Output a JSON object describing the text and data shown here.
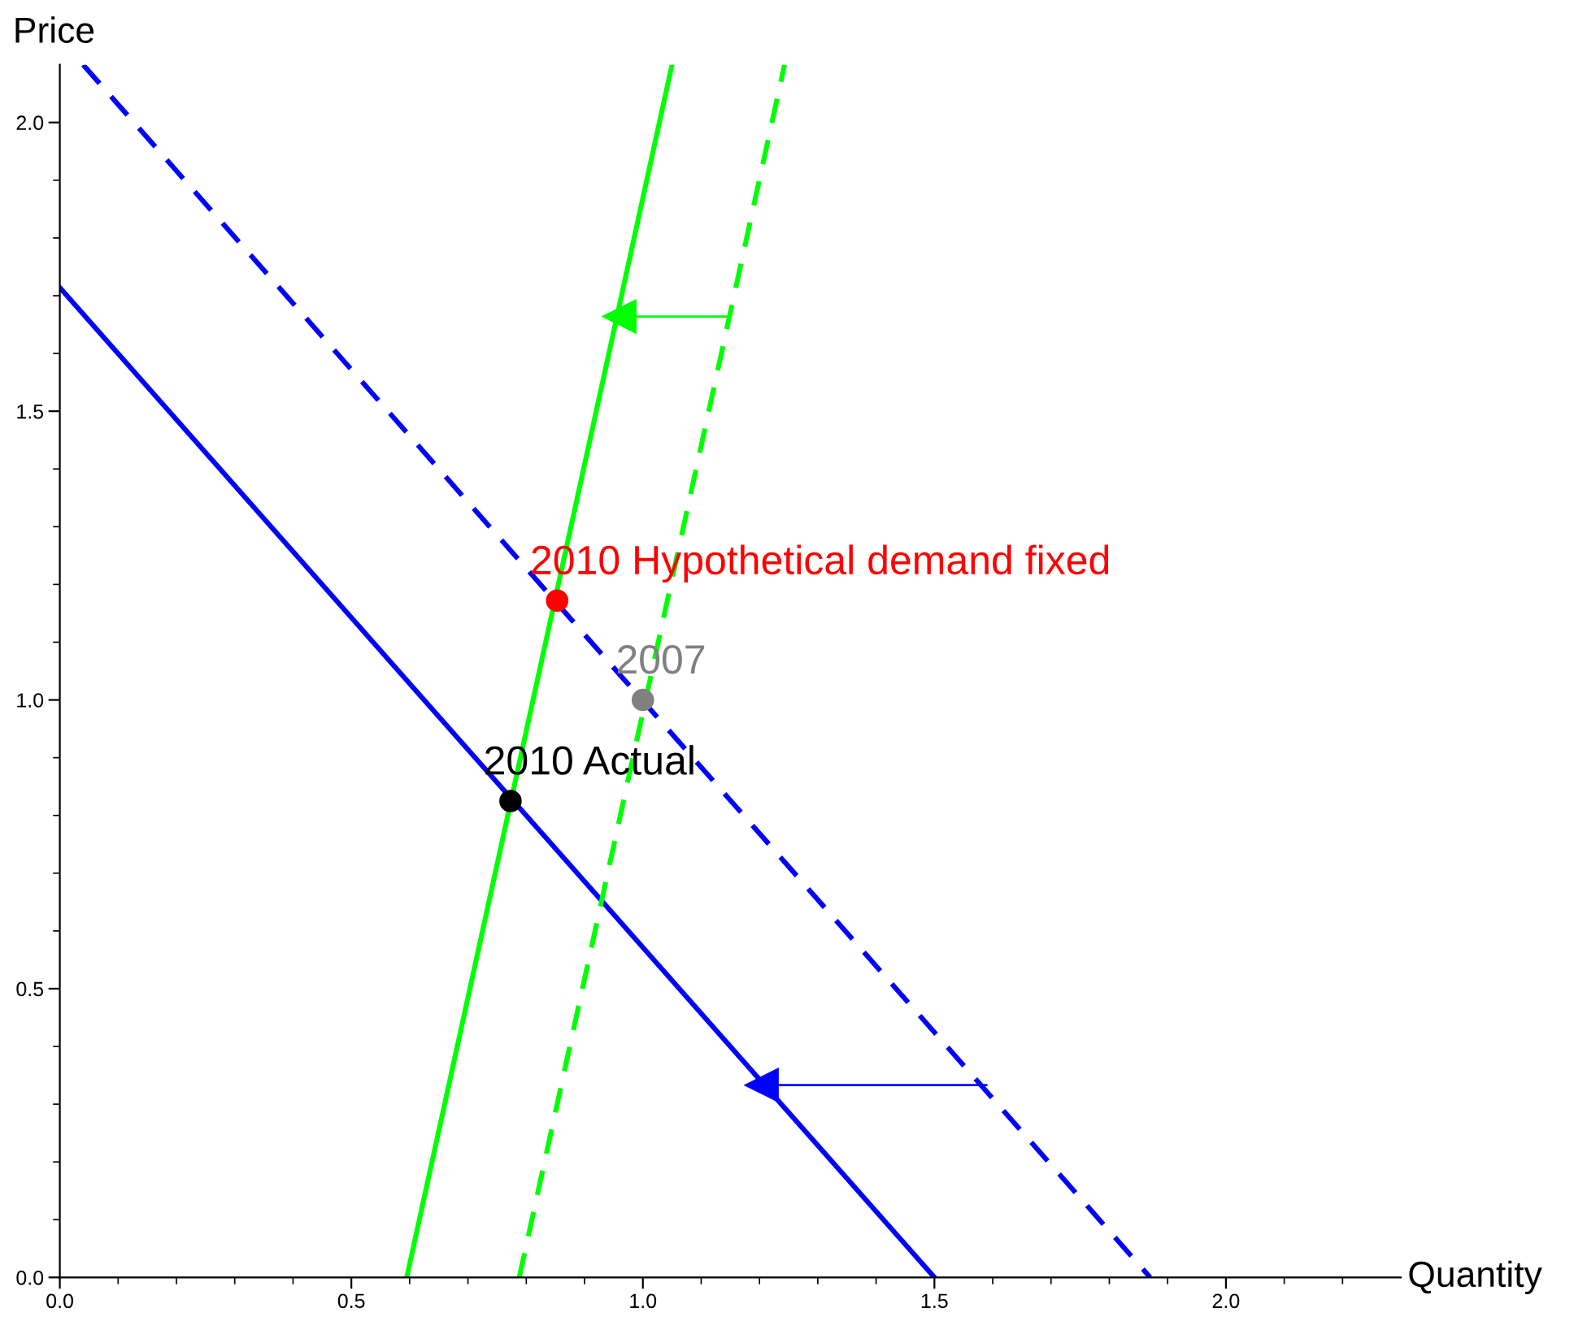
{
  "chart_data": {
    "type": "line",
    "xlabel": "Quantity",
    "ylabel": "Price",
    "xlim": [
      0,
      2.3
    ],
    "ylim": [
      0,
      2.1
    ],
    "xticks": [
      {
        "value": 0,
        "label": "0.0"
      },
      {
        "value": 0.1,
        "label": null
      },
      {
        "value": 0.2,
        "label": null
      },
      {
        "value": 0.3,
        "label": null
      },
      {
        "value": 0.4,
        "label": null
      },
      0.5,
      {
        "value": 0.6,
        "label": null
      },
      {
        "value": 0.7,
        "label": null
      },
      {
        "value": 0.8,
        "label": null
      },
      {
        "value": 0.9,
        "label": null
      },
      {
        "value": 1,
        "label": "1.0"
      },
      {
        "value": 1.1,
        "label": null
      },
      {
        "value": 1.2,
        "label": null
      },
      {
        "value": 1.3,
        "label": null
      },
      {
        "value": 1.4,
        "label": null
      },
      1.5,
      {
        "value": 1.6,
        "label": null
      },
      {
        "value": 1.7,
        "label": null
      },
      {
        "value": 1.8,
        "label": null
      },
      {
        "value": 1.9,
        "label": null
      },
      {
        "value": 2,
        "label": "2.0"
      },
      {
        "value": 2.1,
        "label": null
      },
      {
        "value": 2.2,
        "label": null
      }
    ],
    "yticks": [
      {
        "value": 0,
        "label": "0.0"
      },
      {
        "value": 0.1,
        "label": null
      },
      {
        "value": 0.2,
        "label": null
      },
      {
        "value": 0.3,
        "label": null
      },
      {
        "value": 0.4,
        "label": null
      },
      0.5,
      {
        "value": 0.6,
        "label": null
      },
      {
        "value": 0.7,
        "label": null
      },
      {
        "value": 0.8,
        "label": null
      },
      {
        "value": 0.9,
        "label": null
      },
      {
        "value": 1,
        "label": "1.0"
      },
      {
        "value": 1.1,
        "label": null
      },
      {
        "value": 1.2,
        "label": null
      },
      {
        "value": 1.3,
        "label": null
      },
      {
        "value": 1.4,
        "label": null
      },
      1.5,
      {
        "value": 1.6,
        "label": null
      },
      {
        "value": 1.7,
        "label": null
      },
      {
        "value": 1.8,
        "label": null
      },
      {
        "value": 1.9,
        "label": null
      },
      {
        "value": 2,
        "label": "2.0"
      }
    ],
    "grid": false,
    "legend": false,
    "marker": "none",
    "series": [
      {
        "color": "#0000ff",
        "line_style": "solid",
        "x": [
          0,
          1.5
        ],
        "values": [
          1.714,
          0
        ]
      },
      {
        "color": "#0000ff",
        "line_style": "dashed",
        "x": [
          0.04,
          1.87
        ],
        "values": [
          2.1,
          0
        ]
      },
      {
        "color": "#00ff00",
        "line_style": "solid",
        "x": [
          0.595,
          1.05
        ],
        "values": [
          0,
          2.1
        ]
      },
      {
        "color": "#00ff00",
        "line_style": "dashed",
        "x": [
          0.788,
          1.243
        ],
        "values": [
          0,
          2.1
        ]
      },
      {
        "color": "#00ff00",
        "line_style": "solid",
        "marker": "triangle",
        "x": [
          1.15,
          0.96
        ],
        "values": [
          1.664,
          1.664
        ]
      },
      {
        "color": "#0000ff",
        "line_style": "solid",
        "marker": "triangle",
        "x": [
          1.589,
          1.204
        ],
        "values": [
          0.333,
          0.333
        ]
      },
      {
        "type": "scatter",
        "marker": "circle",
        "x": [
          0.853,
          1.0,
          0.773
        ],
        "values": [
          1.172,
          1.0,
          0.825
        ],
        "colors": [
          "#ff0000",
          "#808080",
          "#000000"
        ]
      }
    ],
    "annotations": [
      {
        "text": "2010 Hypothetical demand fixed",
        "x": 0.853,
        "y": 1.172
      },
      {
        "text": "2007",
        "x": 1.0,
        "y": 1.0
      },
      {
        "text": "2010 Actual",
        "x": 0.773,
        "y": 0.825
      }
    ]
  }
}
